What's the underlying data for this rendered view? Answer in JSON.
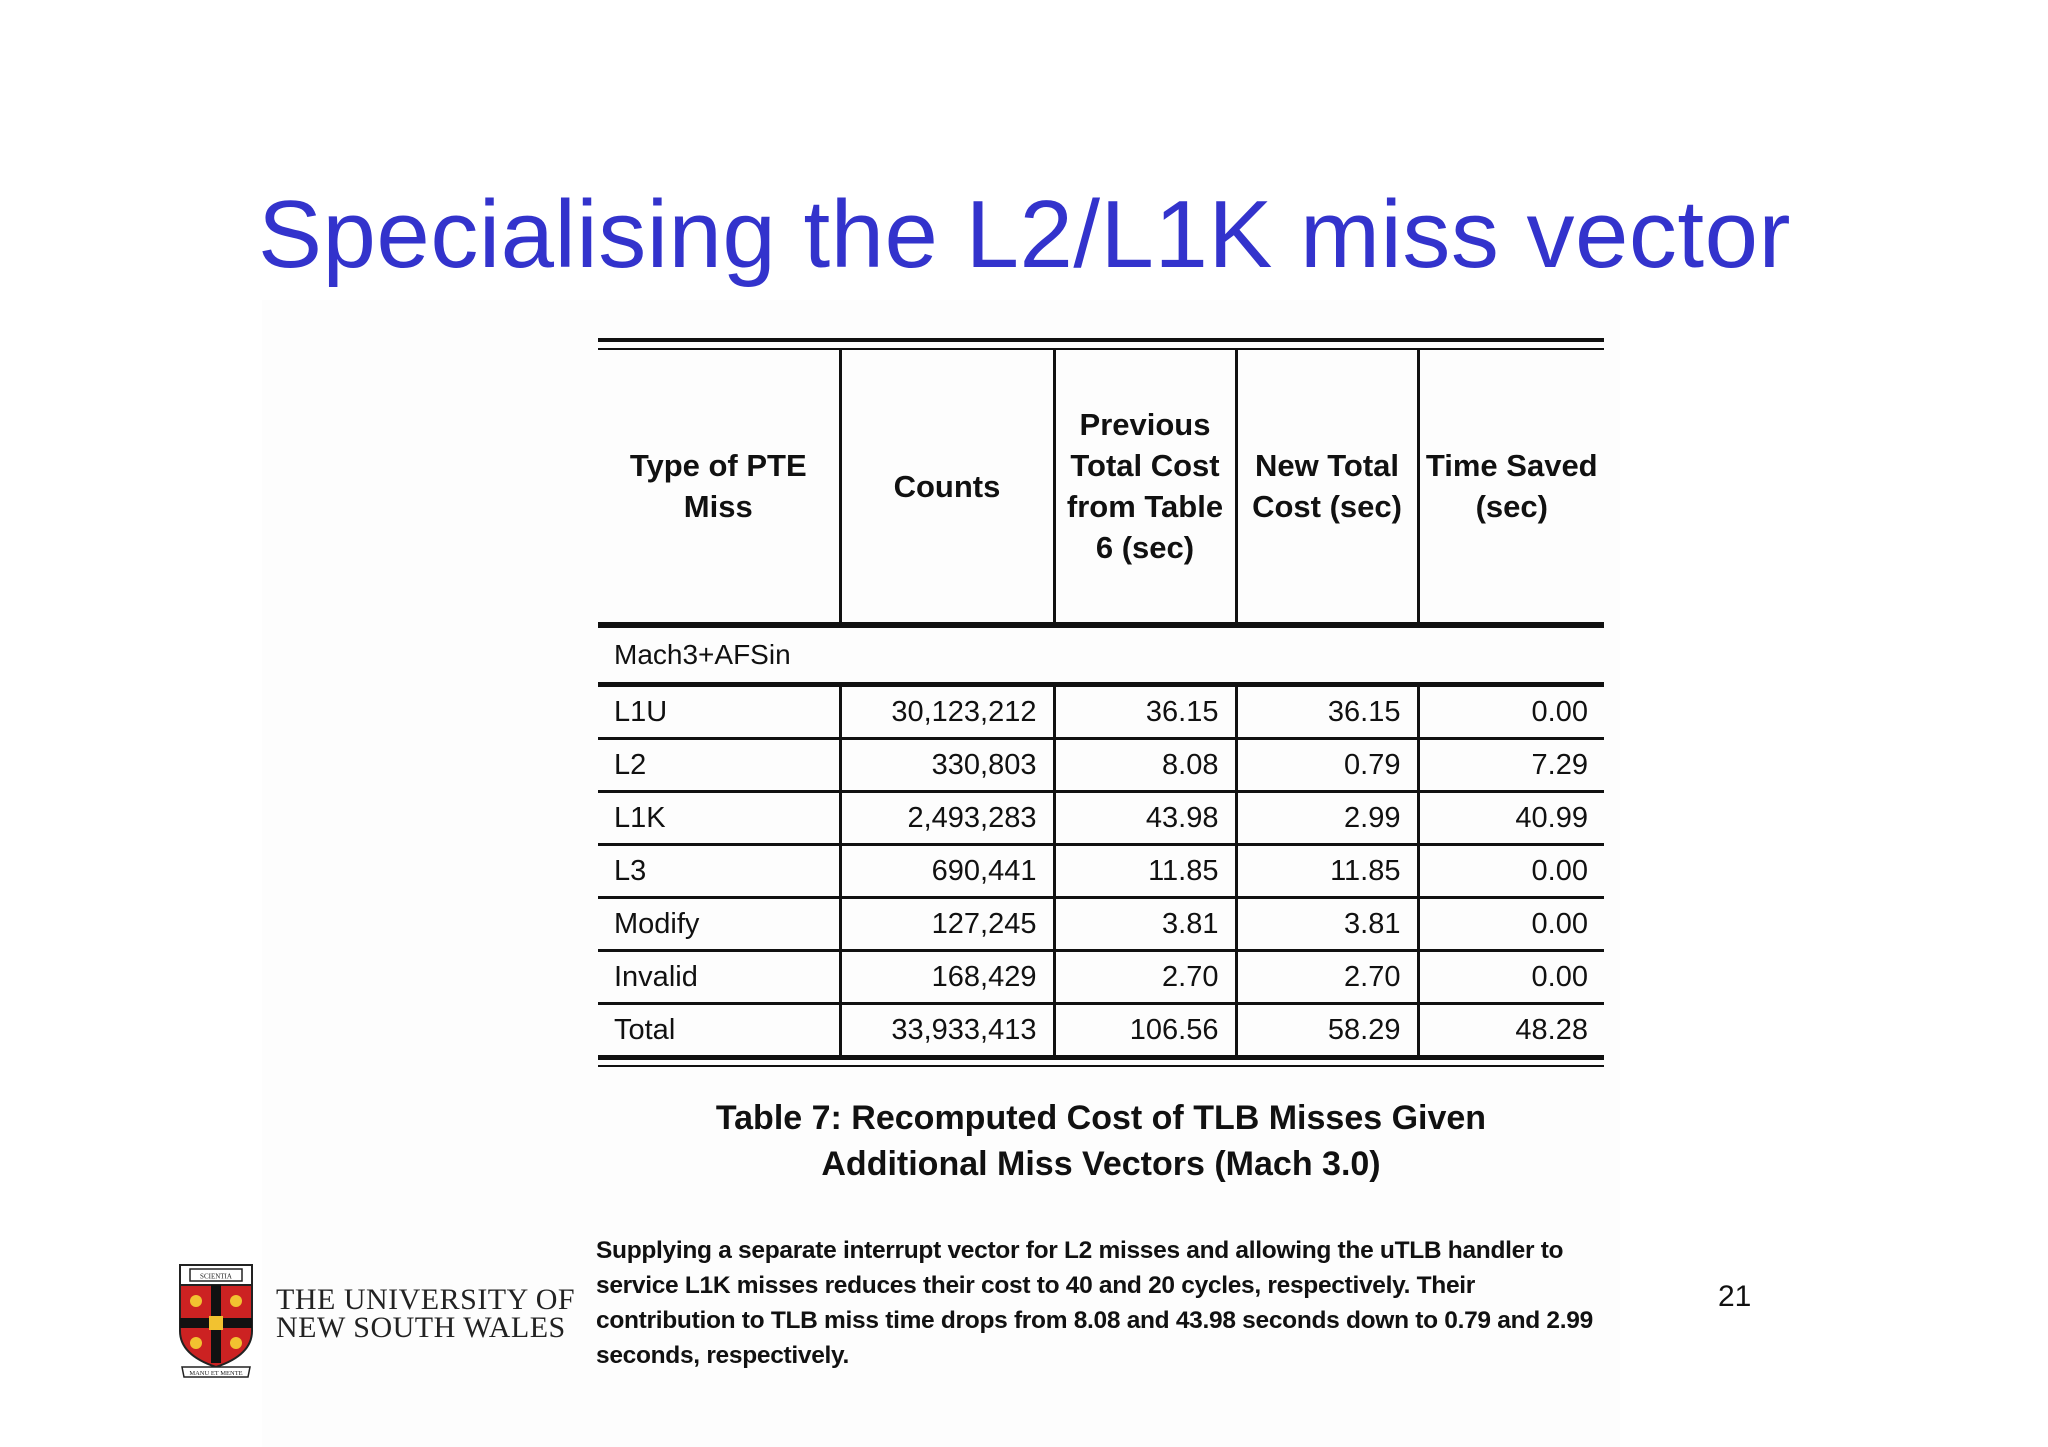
{
  "slide": {
    "title": "Specialising the L2/L1K miss vector",
    "page_number": "21"
  },
  "logo": {
    "line1": "THE UNIVERSITY OF",
    "line2": "NEW SOUTH WALES",
    "crest_text": "SCIENTIA",
    "motto": "MANU ET MENTE"
  },
  "table": {
    "headers": [
      "Type of PTE Miss",
      "Counts",
      "Previous Total Cost from Table 6 (sec)",
      "New Total Cost (sec)",
      "Time Saved (sec)"
    ],
    "group_label": "Mach3+AFSin",
    "rows": [
      [
        "L1U",
        "30,123,212",
        "36.15",
        "36.15",
        "0.00"
      ],
      [
        "L2",
        "330,803",
        "8.08",
        "0.79",
        "7.29"
      ],
      [
        "L1K",
        "2,493,283",
        "43.98",
        "2.99",
        "40.99"
      ],
      [
        "L3",
        "690,441",
        "11.85",
        "11.85",
        "0.00"
      ],
      [
        "Modify",
        "127,245",
        "3.81",
        "3.81",
        "0.00"
      ],
      [
        "Invalid",
        "168,429",
        "2.70",
        "2.70",
        "0.00"
      ]
    ],
    "total_row": [
      "Total",
      "33,933,413",
      "106.56",
      "58.29",
      "48.28"
    ]
  },
  "caption": {
    "line1": "Table 7: Recomputed Cost of TLB Misses Given",
    "line2": "Additional Miss Vectors (Mach 3.0)"
  },
  "paragraph": "Supplying a separate interrupt vector for L2 misses and allowing the uTLB handler to service L1K misses reduces their cost to 40 and 20 cycles, respectively. Their contribution to TLB miss time drops from 8.08 and 43.98 seconds down to 0.79 and 2.99 seconds, respectively."
}
